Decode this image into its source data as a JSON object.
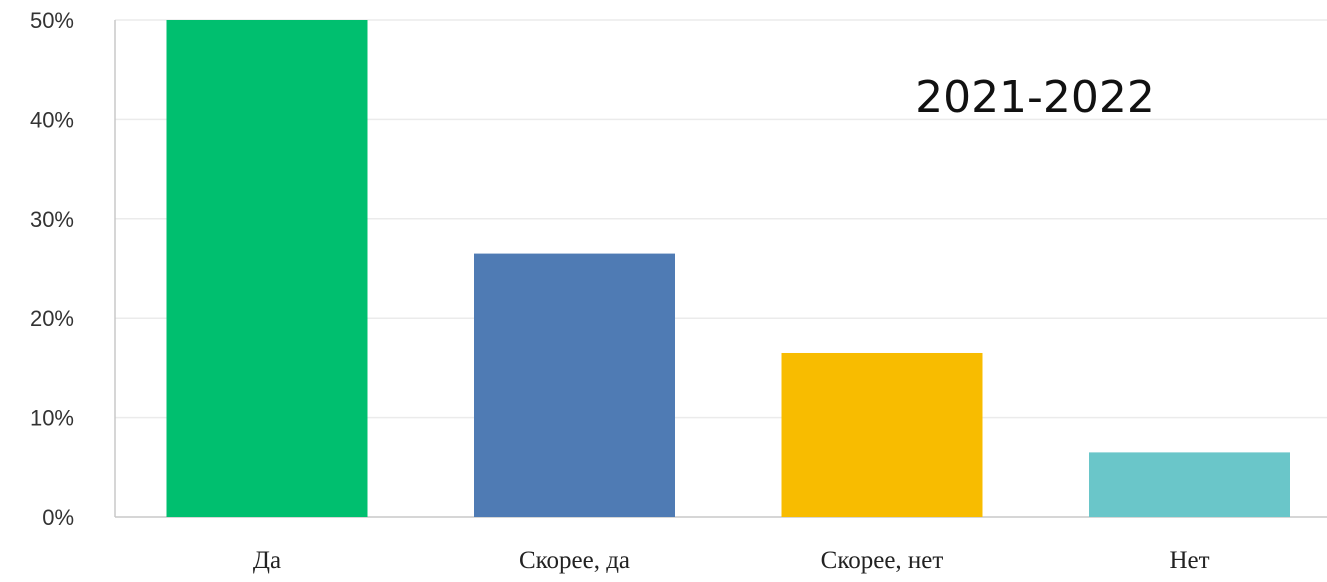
{
  "chart_data": {
    "type": "bar",
    "title": "2021-2022",
    "categories": [
      "Да",
      "Скорее, да",
      "Скорее, нет",
      "Нет"
    ],
    "values": [
      50,
      26.5,
      16.5,
      6.5
    ],
    "colors": [
      "#00bf6f",
      "#4f7bb4",
      "#f8bc00",
      "#6ac6c9"
    ],
    "ylim": [
      0,
      50
    ],
    "yticks": [
      0,
      10,
      20,
      30,
      40,
      50
    ],
    "ytick_labels": [
      "0%",
      "10%",
      "20%",
      "30%",
      "40%",
      "50%"
    ],
    "xlabel": "",
    "ylabel": "",
    "grid": true,
    "legend": "none"
  }
}
